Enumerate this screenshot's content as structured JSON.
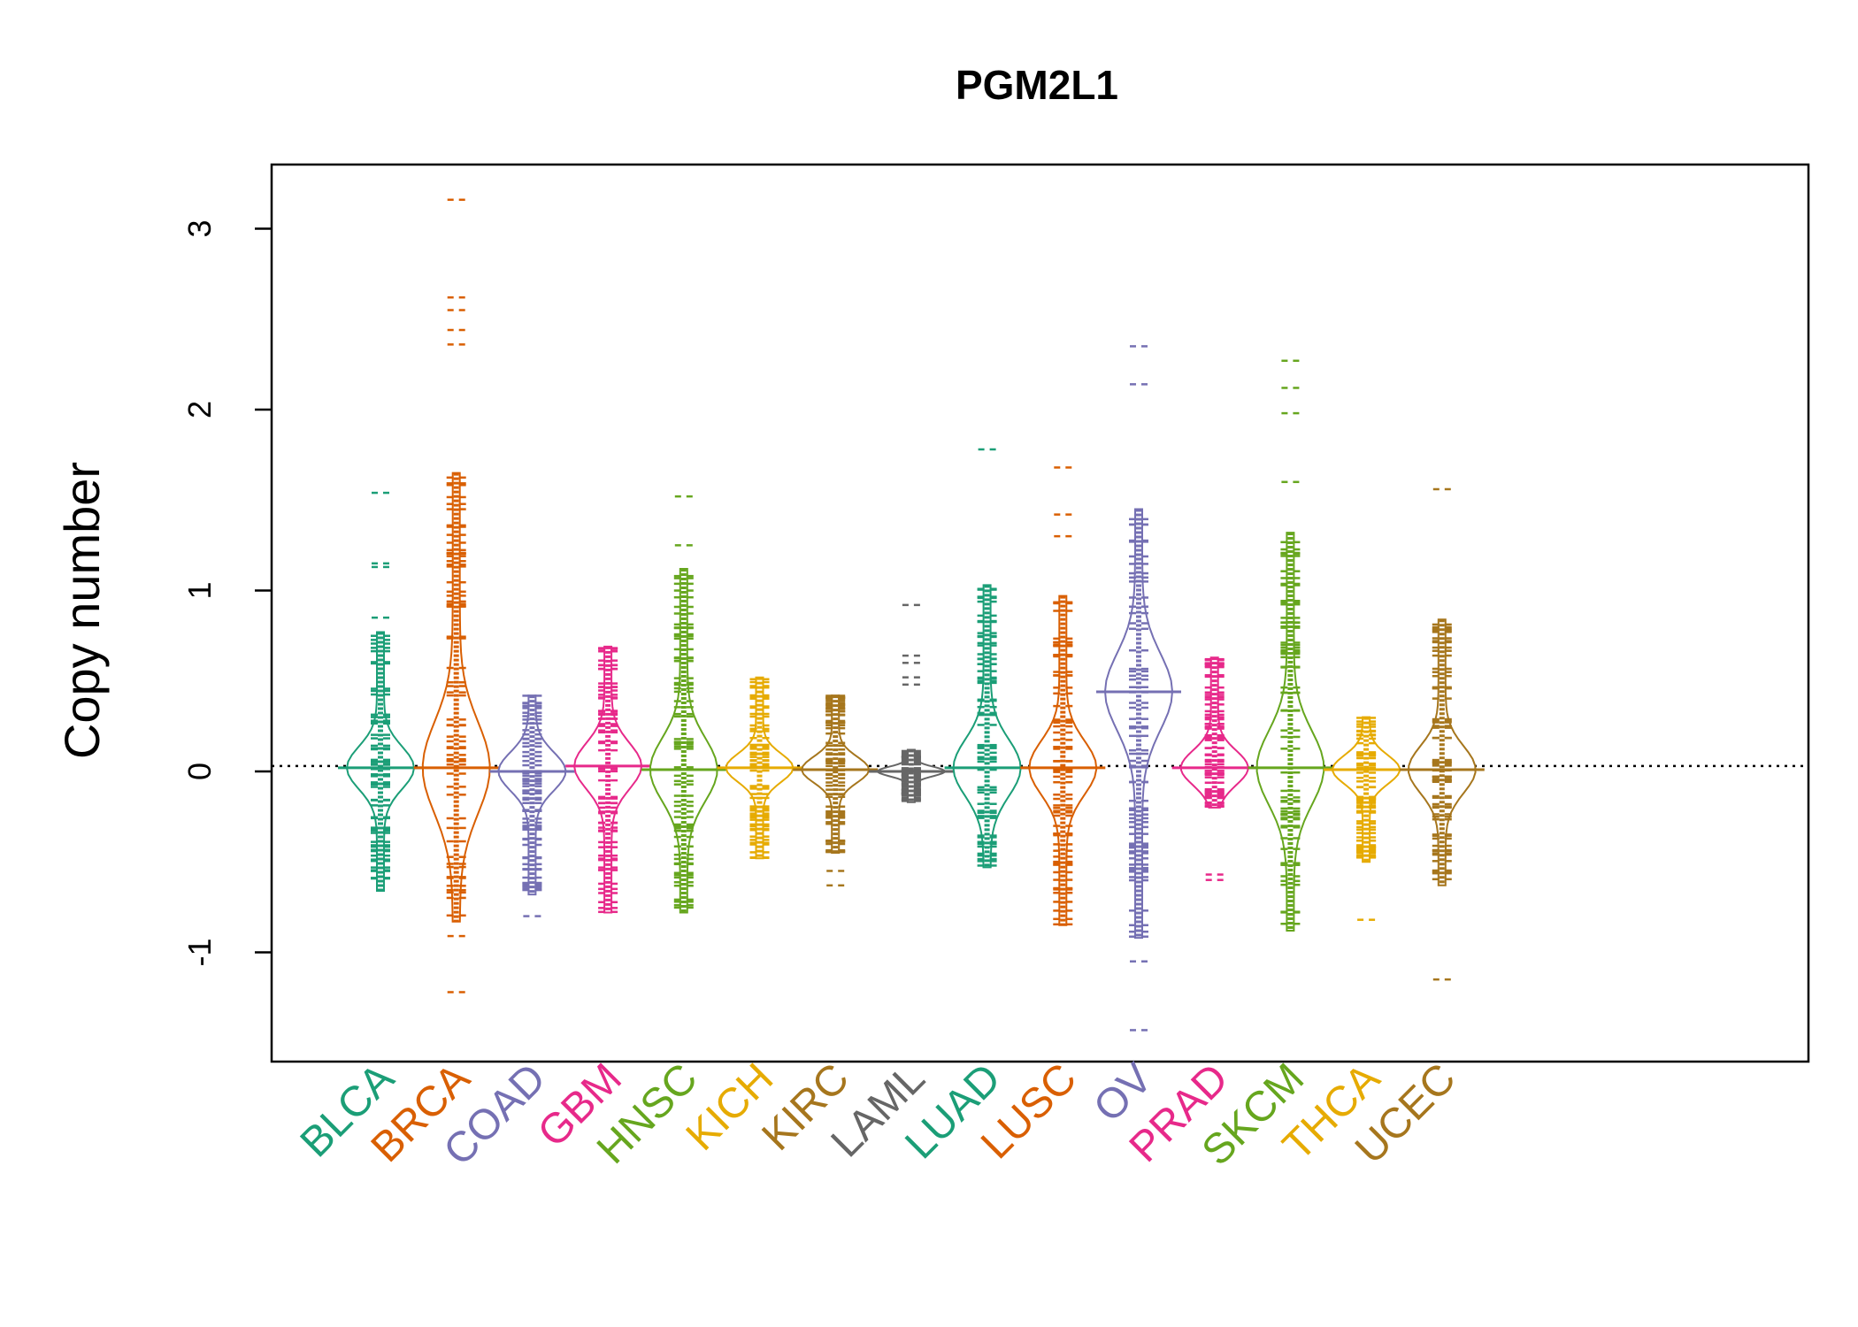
{
  "chart_data": {
    "type": "beanplot",
    "title": "PGM2L1",
    "ylabel": "Copy number",
    "xlabel": "",
    "ylim": [
      -1.6,
      3.3
    ],
    "yticks": [
      -1,
      0,
      1,
      2,
      3
    ],
    "reference_line": 0.03,
    "grid": false,
    "categories": [
      "BLCA",
      "BRCA",
      "COAD",
      "GBM",
      "HNSC",
      "KICH",
      "KIRC",
      "LAML",
      "LUAD",
      "LUSC",
      "OV",
      "PRAD",
      "SKCM",
      "THCA",
      "UCEC"
    ],
    "colors": [
      "#1b9e77",
      "#d95f02",
      "#7570b3",
      "#e7298a",
      "#66a61e",
      "#e6ab02",
      "#a6761d",
      "#666666",
      "#1b9e77",
      "#d95f02",
      "#7570b3",
      "#e7298a",
      "#66a61e",
      "#e6ab02",
      "#a6761d"
    ],
    "series": [
      {
        "name": "BLCA",
        "min": -0.66,
        "max": 0.77,
        "mean": 0.02,
        "outliers": [
          0.85,
          1.13,
          1.15,
          1.54
        ]
      },
      {
        "name": "BRCA",
        "min": -0.83,
        "max": 1.65,
        "mean": 0.02,
        "outliers": [
          -1.22,
          -0.91,
          2.36,
          2.44,
          2.55,
          2.62,
          3.16
        ]
      },
      {
        "name": "COAD",
        "min": -0.68,
        "max": 0.42,
        "mean": 0.0,
        "outliers": [
          -0.8
        ]
      },
      {
        "name": "GBM",
        "min": -0.78,
        "max": 0.69,
        "mean": 0.03,
        "outliers": []
      },
      {
        "name": "HNSC",
        "min": -0.78,
        "max": 1.12,
        "mean": 0.01,
        "outliers": [
          1.25,
          1.52
        ]
      },
      {
        "name": "KICH",
        "min": -0.48,
        "max": 0.52,
        "mean": 0.02,
        "outliers": []
      },
      {
        "name": "KIRC",
        "min": -0.45,
        "max": 0.42,
        "mean": 0.01,
        "outliers": [
          -0.63,
          -0.55
        ]
      },
      {
        "name": "LAML",
        "min": -0.17,
        "max": 0.12,
        "mean": 0.0,
        "outliers": [
          0.48,
          0.52,
          0.6,
          0.64,
          0.92
        ]
      },
      {
        "name": "LUAD",
        "min": -0.53,
        "max": 1.03,
        "mean": 0.02,
        "outliers": [
          1.78
        ]
      },
      {
        "name": "LUSC",
        "min": -0.85,
        "max": 0.97,
        "mean": 0.02,
        "outliers": [
          1.3,
          1.42,
          1.68
        ]
      },
      {
        "name": "OV",
        "min": -0.92,
        "max": 1.45,
        "mean": 0.44,
        "outliers": [
          -1.43,
          -1.05,
          2.14,
          2.35
        ]
      },
      {
        "name": "PRAD",
        "min": -0.2,
        "max": 0.63,
        "mean": 0.02,
        "outliers": [
          -0.6,
          -0.57
        ]
      },
      {
        "name": "SKCM",
        "min": -0.88,
        "max": 1.32,
        "mean": 0.02,
        "outliers": [
          1.6,
          1.98,
          2.12,
          2.27
        ]
      },
      {
        "name": "THCA",
        "min": -0.5,
        "max": 0.3,
        "mean": 0.01,
        "outliers": [
          -0.82
        ]
      },
      {
        "name": "UCEC",
        "min": -0.63,
        "max": 0.84,
        "mean": 0.01,
        "outliers": [
          -1.15,
          1.56
        ]
      }
    ]
  }
}
